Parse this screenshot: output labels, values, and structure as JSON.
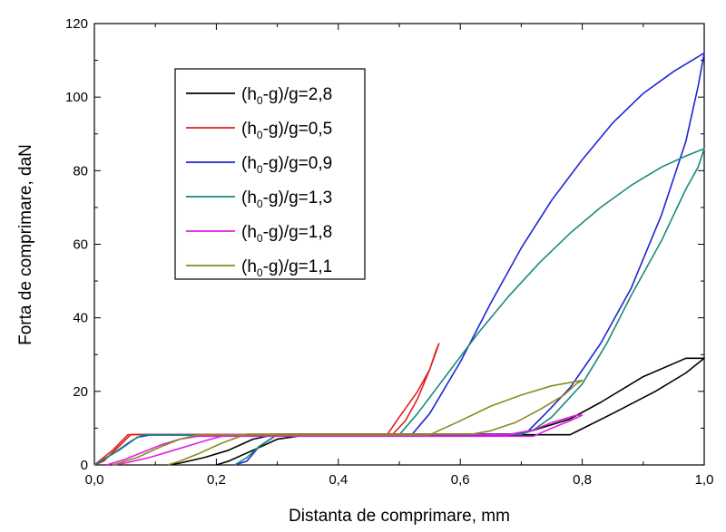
{
  "chart_data": {
    "type": "line",
    "title": "",
    "xlabel": "Distanta de comprimare, mm",
    "ylabel": "Forta de comprimare, daN",
    "xlim": [
      0,
      1.0
    ],
    "ylim": [
      0,
      120
    ],
    "xticks": [
      0.0,
      0.2,
      0.4,
      0.6,
      0.8,
      1.0
    ],
    "xtick_labels": [
      "0,0",
      "0,2",
      "0,4",
      "0,6",
      "0,8",
      "1,0"
    ],
    "yticks": [
      0,
      20,
      40,
      60,
      80,
      100,
      120
    ],
    "ytick_labels": [
      "0",
      "20",
      "40",
      "60",
      "80",
      "100",
      "120"
    ],
    "grid": false,
    "legend_position": "top-left",
    "series": [
      {
        "name": "(h0-g)/g=2,8",
        "legend": {
          "pre": "(h",
          "sub": "0",
          "post": "-g)/g=2,8"
        },
        "color": "#000000",
        "points": [
          [
            0.2,
            0
          ],
          [
            0.22,
            1
          ],
          [
            0.26,
            4
          ],
          [
            0.3,
            7
          ],
          [
            0.35,
            8.2
          ],
          [
            0.78,
            8.2
          ],
          [
            0.85,
            14
          ],
          [
            0.92,
            20
          ],
          [
            0.97,
            25
          ],
          [
            1.0,
            29
          ],
          [
            0.97,
            29
          ],
          [
            0.9,
            24
          ],
          [
            0.83,
            17
          ],
          [
            0.78,
            12.5
          ],
          [
            0.7,
            8.4
          ],
          [
            0.3,
            8.4
          ],
          [
            0.26,
            7
          ],
          [
            0.22,
            4
          ],
          [
            0.18,
            2
          ],
          [
            0.14,
            0.5
          ],
          [
            0.12,
            0
          ]
        ]
      },
      {
        "name": "(h0-g)/g=0,5",
        "legend": {
          "pre": "(h",
          "sub": "0",
          "post": "-g)/g=0,5"
        },
        "color": "#e02020",
        "points": [
          [
            0.0,
            0
          ],
          [
            0.03,
            4
          ],
          [
            0.055,
            8.2
          ],
          [
            0.48,
            8.2
          ],
          [
            0.5,
            13
          ],
          [
            0.53,
            20
          ],
          [
            0.55,
            26
          ],
          [
            0.565,
            33
          ],
          [
            0.56,
            31
          ],
          [
            0.55,
            26
          ],
          [
            0.53,
            18
          ],
          [
            0.51,
            12
          ],
          [
            0.49,
            8.5
          ],
          [
            0.47,
            8.3
          ],
          [
            0.06,
            8.3
          ],
          [
            0.04,
            5
          ],
          [
            0.015,
            1
          ],
          [
            0.0,
            0
          ]
        ]
      },
      {
        "name": "(h0-g)/g=0,9",
        "legend": {
          "pre": "(h",
          "sub": "0",
          "post": "-g)/g=0,9"
        },
        "color": "#1f25d6",
        "points": [
          [
            0.0,
            0
          ],
          [
            0.04,
            4
          ],
          [
            0.07,
            7.5
          ],
          [
            0.09,
            8.1
          ],
          [
            0.52,
            8.1
          ],
          [
            0.55,
            14
          ],
          [
            0.6,
            28
          ],
          [
            0.65,
            44
          ],
          [
            0.7,
            59
          ],
          [
            0.75,
            72
          ],
          [
            0.8,
            83
          ],
          [
            0.85,
            93
          ],
          [
            0.9,
            101
          ],
          [
            0.95,
            107
          ],
          [
            1.0,
            112
          ],
          [
            0.99,
            103
          ],
          [
            0.97,
            88
          ],
          [
            0.93,
            68
          ],
          [
            0.88,
            48
          ],
          [
            0.83,
            33
          ],
          [
            0.78,
            21
          ],
          [
            0.74,
            14
          ],
          [
            0.71,
            9
          ],
          [
            0.68,
            8.2
          ],
          [
            0.3,
            8.2
          ],
          [
            0.27,
            5
          ],
          [
            0.25,
            1
          ],
          [
            0.23,
            0
          ]
        ]
      },
      {
        "name": "(h0-g)/g=1,3",
        "legend": {
          "pre": "(h",
          "sub": "0",
          "post": "-g)/g=1,3"
        },
        "color": "#1a8a7e",
        "points": [
          [
            0.0,
            0
          ],
          [
            0.03,
            3
          ],
          [
            0.06,
            6.5
          ],
          [
            0.08,
            8.2
          ],
          [
            0.5,
            8.2
          ],
          [
            0.53,
            14
          ],
          [
            0.58,
            25
          ],
          [
            0.63,
            36
          ],
          [
            0.68,
            46
          ],
          [
            0.73,
            55
          ],
          [
            0.78,
            63
          ],
          [
            0.83,
            70
          ],
          [
            0.88,
            76
          ],
          [
            0.93,
            81
          ],
          [
            0.97,
            84
          ],
          [
            1.0,
            86
          ],
          [
            0.99,
            81
          ],
          [
            0.97,
            75
          ],
          [
            0.93,
            61
          ],
          [
            0.88,
            46
          ],
          [
            0.84,
            33
          ],
          [
            0.8,
            22
          ],
          [
            0.75,
            13
          ],
          [
            0.72,
            9.5
          ],
          [
            0.7,
            8.3
          ],
          [
            0.3,
            8.3
          ],
          [
            0.27,
            5
          ],
          [
            0.25,
            2
          ],
          [
            0.23,
            0
          ]
        ]
      },
      {
        "name": "(h0-g)/g=1,8",
        "legend": {
          "pre": "(h",
          "sub": "0",
          "post": "-g)/g=1,8"
        },
        "color": "#e020e0",
        "points": [
          [
            0.02,
            0
          ],
          [
            0.05,
            1.5
          ],
          [
            0.08,
            3.5
          ],
          [
            0.11,
            5.5
          ],
          [
            0.14,
            7
          ],
          [
            0.17,
            7.8
          ],
          [
            0.72,
            7.8
          ],
          [
            0.75,
            10
          ],
          [
            0.78,
            12
          ],
          [
            0.8,
            13.5
          ],
          [
            0.79,
            13.5
          ],
          [
            0.75,
            11.5
          ],
          [
            0.72,
            9.5
          ],
          [
            0.68,
            8.3
          ],
          [
            0.22,
            8.3
          ],
          [
            0.18,
            6.5
          ],
          [
            0.13,
            4
          ],
          [
            0.09,
            2
          ],
          [
            0.05,
            0.5
          ],
          [
            0.03,
            0
          ]
        ]
      },
      {
        "name": "(h0-g)/g=1,1",
        "legend": {
          "pre": "(h",
          "sub": "0",
          "post": "-g)/g=1,1"
        },
        "color": "#8c8a1e",
        "points": [
          [
            0.03,
            0
          ],
          [
            0.07,
            2
          ],
          [
            0.11,
            5
          ],
          [
            0.14,
            7
          ],
          [
            0.17,
            8.2
          ],
          [
            0.55,
            8.2
          ],
          [
            0.6,
            12
          ],
          [
            0.65,
            16
          ],
          [
            0.7,
            19
          ],
          [
            0.75,
            21.5
          ],
          [
            0.8,
            23
          ],
          [
            0.79,
            22
          ],
          [
            0.77,
            19
          ],
          [
            0.73,
            15
          ],
          [
            0.69,
            11.5
          ],
          [
            0.65,
            9.3
          ],
          [
            0.62,
            8.4
          ],
          [
            0.25,
            8.4
          ],
          [
            0.21,
            6
          ],
          [
            0.17,
            3
          ],
          [
            0.14,
            1
          ],
          [
            0.12,
            0
          ]
        ]
      }
    ]
  }
}
